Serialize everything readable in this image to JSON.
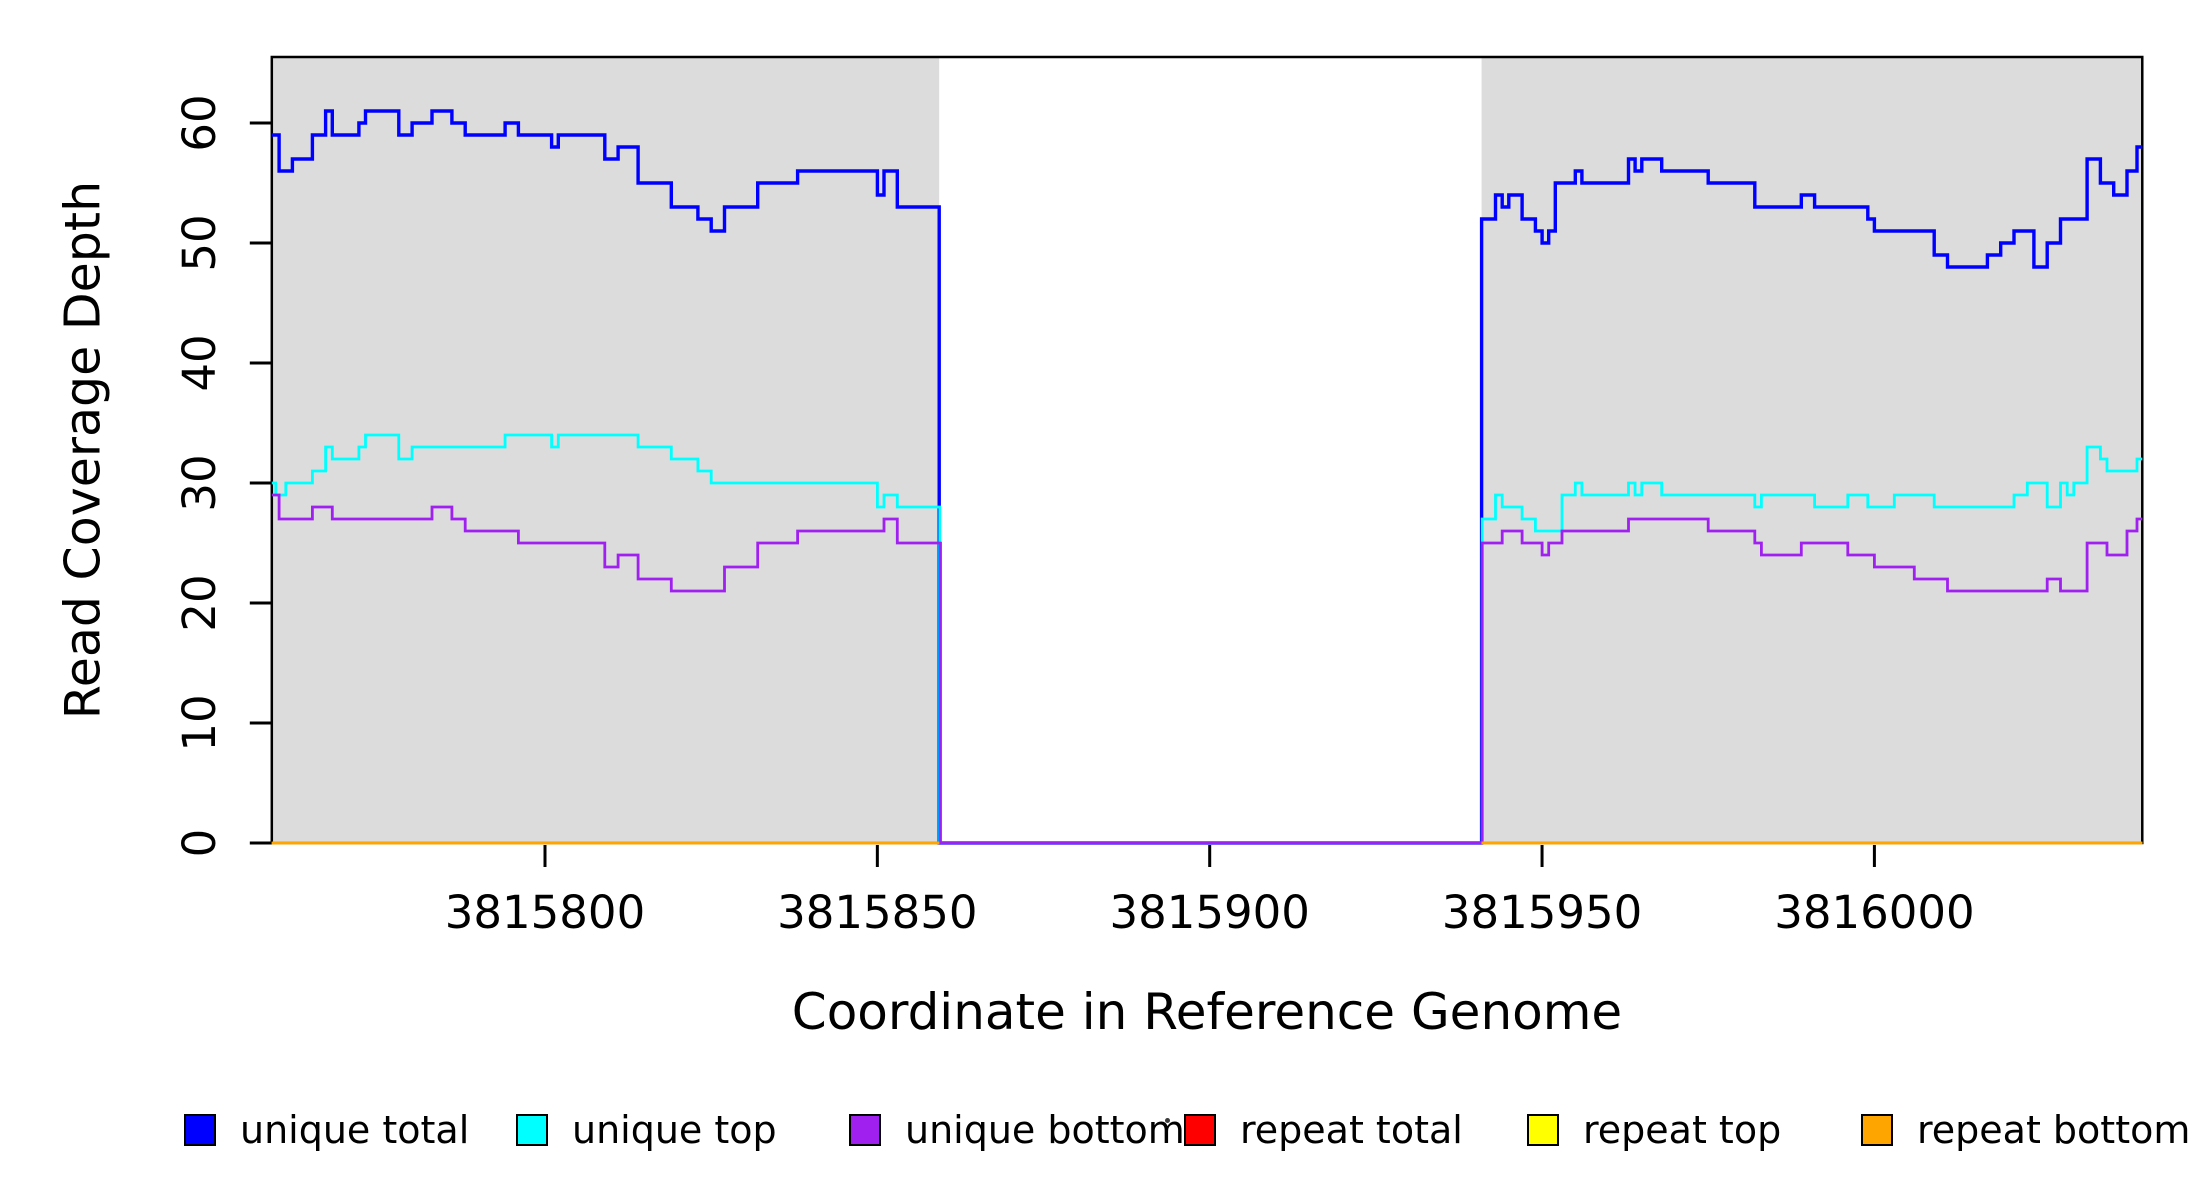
{
  "figure": {
    "x_axis_title": "Coordinate in Reference Genome",
    "y_axis_title": "Read Coverage Depth"
  },
  "legend": {
    "items": [
      {
        "label": "unique total",
        "color": "#0000FF"
      },
      {
        "label": "unique top",
        "color": "#00FFFF"
      },
      {
        "label": "unique bottom",
        "color": "#A020F0"
      },
      {
        "label": "repeat total",
        "color": "#FF0000"
      },
      {
        "label": "repeat top",
        "color": "#FFFF00"
      },
      {
        "label": "repeat bottom",
        "color": "#FFA500"
      }
    ]
  },
  "chart_data": {
    "type": "line",
    "subtype": "step-after",
    "title": "",
    "xlabel": "Coordinate in Reference Genome",
    "ylabel": "Read Coverage Depth",
    "xlim": [
      3815758.9,
      3816040.3
    ],
    "ylim": [
      0,
      65.5
    ],
    "xticks": [
      3815800,
      3815850,
      3815900,
      3815950,
      3816000
    ],
    "xtick_labels": [
      "3815800",
      "3815850",
      "3815900",
      "3815950",
      "3816000"
    ],
    "yticks": [
      0,
      10,
      20,
      30,
      40,
      50,
      60
    ],
    "ytick_labels": [
      "0",
      "10",
      "20",
      "30",
      "40",
      "50",
      "60"
    ],
    "grid": false,
    "legend_position": "bottom",
    "shading_fill": "#DCDCDC",
    "shaded_regions": [
      {
        "x0": 3815758.9,
        "x1": 3815859.3
      },
      {
        "x0": 3815940.9,
        "x1": 3816040.3
      }
    ],
    "series": [
      {
        "name": "unique total",
        "color": "#0000FF",
        "width": 3.4,
        "segments": [
          [
            [
              3815758.9,
              59
            ],
            [
              3815760,
              56
            ],
            [
              3815762,
              57
            ],
            [
              3815765,
              59
            ],
            [
              3815767,
              61
            ],
            [
              3815768,
              59
            ],
            [
              3815772,
              60
            ],
            [
              3815773,
              61
            ],
            [
              3815778,
              59
            ],
            [
              3815780,
              60
            ],
            [
              3815783,
              61
            ],
            [
              3815786,
              60
            ],
            [
              3815788,
              59
            ],
            [
              3815794,
              60
            ],
            [
              3815796,
              59
            ],
            [
              3815801,
              58
            ],
            [
              3815802,
              59
            ],
            [
              3815809,
              57
            ],
            [
              3815811,
              58
            ],
            [
              3815814,
              55
            ],
            [
              3815819,
              53
            ],
            [
              3815823,
              52
            ],
            [
              3815825,
              51
            ],
            [
              3815827,
              53
            ],
            [
              3815832,
              55
            ],
            [
              3815838,
              56
            ],
            [
              3815850,
              54
            ],
            [
              3815851,
              56
            ],
            [
              3815853,
              53
            ],
            [
              3815859.3,
              0
            ],
            [
              3815940.9,
              52
            ],
            [
              3815943,
              54
            ],
            [
              3815944,
              53
            ],
            [
              3815945,
              54
            ],
            [
              3815947,
              52
            ],
            [
              3815949,
              51
            ],
            [
              3815950,
              50
            ],
            [
              3815951,
              51
            ],
            [
              3815952,
              55
            ],
            [
              3815955,
              56
            ],
            [
              3815956,
              55
            ],
            [
              3815963,
              57
            ],
            [
              3815964,
              56
            ],
            [
              3815965,
              57
            ],
            [
              3815968,
              56
            ],
            [
              3815975,
              55
            ],
            [
              3815982,
              53
            ],
            [
              3815989,
              54
            ],
            [
              3815991,
              53
            ],
            [
              3815999,
              52
            ],
            [
              3816000,
              51
            ],
            [
              3816009,
              49
            ],
            [
              3816011,
              48
            ],
            [
              3816017,
              49
            ],
            [
              3816019,
              50
            ],
            [
              3816021,
              51
            ],
            [
              3816024,
              48
            ],
            [
              3816026,
              50
            ],
            [
              3816028,
              52
            ],
            [
              3816032,
              57
            ],
            [
              3816034,
              55
            ],
            [
              3816036,
              54
            ],
            [
              3816038,
              56
            ],
            [
              3816039.5,
              58
            ],
            [
              3816040.3,
              58
            ]
          ]
        ]
      },
      {
        "name": "unique top",
        "color": "#00FFFF",
        "width": 2.8,
        "segments": [
          [
            [
              3815758.9,
              30
            ],
            [
              3815759.5,
              29
            ],
            [
              3815761,
              30
            ],
            [
              3815765,
              31
            ],
            [
              3815767,
              33
            ],
            [
              3815768,
              32
            ],
            [
              3815772,
              33
            ],
            [
              3815773,
              34
            ],
            [
              3815778,
              32
            ],
            [
              3815780,
              33
            ],
            [
              3815794,
              34
            ],
            [
              3815801,
              33
            ],
            [
              3815802,
              34
            ],
            [
              3815814,
              33
            ],
            [
              3815819,
              32
            ],
            [
              3815823,
              31
            ],
            [
              3815825,
              30
            ],
            [
              3815850,
              28
            ],
            [
              3815851,
              29
            ],
            [
              3815853,
              28
            ],
            [
              3815859.4,
              0
            ],
            [
              3815941,
              27
            ],
            [
              3815943,
              29
            ],
            [
              3815944,
              28
            ],
            [
              3815947,
              27
            ],
            [
              3815949,
              26
            ],
            [
              3815953,
              29
            ],
            [
              3815955,
              30
            ],
            [
              3815956,
              29
            ],
            [
              3815963,
              30
            ],
            [
              3815964,
              29
            ],
            [
              3815965,
              30
            ],
            [
              3815968,
              29
            ],
            [
              3815982,
              28
            ],
            [
              3815983,
              29
            ],
            [
              3815991,
              28
            ],
            [
              3815996,
              29
            ],
            [
              3815999,
              28
            ],
            [
              3816003,
              29
            ],
            [
              3816009,
              28
            ],
            [
              3816021,
              29
            ],
            [
              3816023,
              30
            ],
            [
              3816026,
              28
            ],
            [
              3816028,
              30
            ],
            [
              3816029,
              29
            ],
            [
              3816030,
              30
            ],
            [
              3816032,
              33
            ],
            [
              3816034,
              32
            ],
            [
              3816035,
              31
            ],
            [
              3816039.5,
              32
            ],
            [
              3816040.3,
              32
            ]
          ]
        ]
      },
      {
        "name": "unique bottom",
        "color": "#A020F0",
        "width": 2.8,
        "segments": [
          [
            [
              3815758.9,
              29
            ],
            [
              3815760,
              27
            ],
            [
              3815765,
              28
            ],
            [
              3815768,
              27
            ],
            [
              3815783,
              28
            ],
            [
              3815786,
              27
            ],
            [
              3815788,
              26
            ],
            [
              3815796,
              25
            ],
            [
              3815809,
              23
            ],
            [
              3815811,
              24
            ],
            [
              3815814,
              22
            ],
            [
              3815819,
              21
            ],
            [
              3815827,
              23
            ],
            [
              3815832,
              25
            ],
            [
              3815838,
              26
            ],
            [
              3815851,
              27
            ],
            [
              3815853,
              25
            ],
            [
              3815859.5,
              0
            ],
            [
              3815941,
              25
            ],
            [
              3815944,
              26
            ],
            [
              3815947,
              25
            ],
            [
              3815950,
              24
            ],
            [
              3815951,
              25
            ],
            [
              3815953,
              26
            ],
            [
              3815963,
              27
            ],
            [
              3815975,
              26
            ],
            [
              3815982,
              25
            ],
            [
              3815983,
              24
            ],
            [
              3815989,
              25
            ],
            [
              3815996,
              24
            ],
            [
              3816000,
              23
            ],
            [
              3816006,
              22
            ],
            [
              3816011,
              21
            ],
            [
              3816026,
              22
            ],
            [
              3816028,
              21
            ],
            [
              3816032,
              25
            ],
            [
              3816035,
              24
            ],
            [
              3816038,
              26
            ],
            [
              3816039.5,
              27
            ],
            [
              3816040.3,
              27
            ]
          ]
        ]
      },
      {
        "name": "repeat total",
        "color": "#FF0000",
        "width": 2.6,
        "segments": [
          [
            [
              3815758.9,
              0
            ],
            [
              3815859.3,
              0
            ]
          ],
          [
            [
              3815940.9,
              0
            ],
            [
              3816040.3,
              0
            ]
          ]
        ]
      },
      {
        "name": "repeat top",
        "color": "#FFFF00",
        "width": 2.6,
        "segments": [
          [
            [
              3815758.9,
              0
            ],
            [
              3815859.3,
              0
            ]
          ],
          [
            [
              3815940.9,
              0
            ],
            [
              3816040.3,
              0
            ]
          ]
        ]
      },
      {
        "name": "repeat bottom",
        "color": "#FFA500",
        "width": 2.6,
        "segments": [
          [
            [
              3815758.9,
              0
            ],
            [
              3815859.3,
              0
            ]
          ],
          [
            [
              3815940.9,
              0
            ],
            [
              3816040.3,
              0
            ]
          ]
        ]
      }
    ]
  }
}
